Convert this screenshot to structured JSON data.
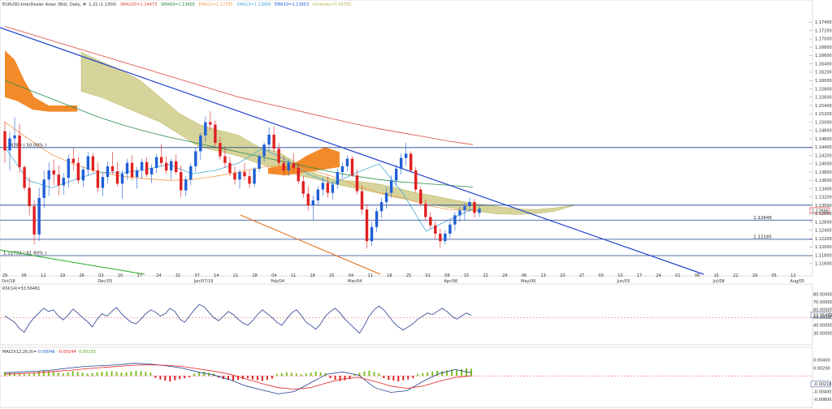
{
  "header": {
    "main": {
      "symbol_text": "EURUSD-InterDealer Asian (Bid), Daily, #: 1.22 (1.1350)",
      "sma200": "SMA200=1.14473",
      "sma89": "SMA89=1.13605",
      "ema21": "EMA21=1.12785",
      "sma13": "SMA13=1.12866",
      "ema10": "EMA10=1.13653",
      "ichimoku": "Ichimoku=1.00750"
    },
    "rsi": {
      "text": "RSI(14)=53.56461"
    },
    "macd": {
      "label": "MACD(12,26,9)=",
      "v1": "0.00049",
      "v2": "-0.00144",
      "v3": "0.00193"
    }
  },
  "colors": {
    "up": "#1f5fd6",
    "down": "#e02020",
    "cloud": "#cfcc88",
    "cloud_bear": "#f28a2a",
    "sma200": "#d94a3a",
    "sma89": "#2a8a4a",
    "ema21": "#f0a050",
    "sma13": "#4aa8d8",
    "trend": "#2244cc",
    "channel": "#e06a10",
    "fib": "#1f3f8f"
  },
  "chart_data": [
    {
      "panel": "price",
      "type": "candlestick",
      "x_ticks": [
        "29",
        "05",
        "12",
        "19",
        "26",
        "03",
        "10",
        "17",
        "24",
        "31",
        "07",
        "14",
        "21",
        "28",
        "04",
        "11",
        "18",
        "25",
        "04",
        "11",
        "18",
        "25",
        "01",
        "08",
        "15",
        "22",
        "29",
        "06",
        "13",
        "20",
        "27",
        "03",
        "10",
        "17",
        "24",
        "01",
        "08",
        "15",
        "22",
        "29",
        "05",
        "12"
      ],
      "period_labels": [
        "Oct/18",
        "Dec/03",
        "Jan/07/19",
        "Feb/04",
        "Mar/04",
        "Apr/08",
        "May/06",
        "Jun/03",
        "Jul/08",
        "Aug/05"
      ],
      "y_ticks": [
        "1.17400",
        "1.17200",
        "1.17000",
        "1.16800",
        "1.16600",
        "1.16400",
        "1.16200",
        "1.16000",
        "1.15800",
        "1.15600",
        "1.15400",
        "1.15200",
        "1.15000",
        "1.14800",
        "1.14600",
        "1.14400",
        "1.14200",
        "1.14000",
        "1.13800",
        "1.13600",
        "1.13400",
        "1.13200",
        "1.13000",
        "1.12800",
        "1.12600",
        "1.12400",
        "1.12200",
        "1.12000",
        "1.11800",
        "1.11600"
      ],
      "ylim": [
        1.115,
        1.177
      ],
      "last_price_label": "1.12866",
      "horizontal_levels": [
        {
          "label": "1.14389 ( 50.00% )",
          "value": 1.14389
        },
        {
          "label": "",
          "value": 1.13005
        },
        {
          "label": "1.12645",
          "value": 1.12645
        },
        {
          "label": "1.12185",
          "value": 1.12185
        },
        {
          "label": "1.11793 ( 61.80% )",
          "value": 1.11793
        }
      ],
      "candles_ohlc": [
        [
          1.1478,
          1.1502,
          1.1402,
          1.1432
        ],
        [
          1.1432,
          1.1476,
          1.1384,
          1.1461
        ],
        [
          1.1461,
          1.1512,
          1.1444,
          1.1468
        ],
        [
          1.1468,
          1.1496,
          1.1378,
          1.1392
        ],
        [
          1.1392,
          1.1396,
          1.1336,
          1.1342
        ],
        [
          1.1342,
          1.1368,
          1.1276,
          1.1298
        ],
        [
          1.1298,
          1.1312,
          1.1206,
          1.123
        ],
        [
          1.123,
          1.1342,
          1.1214,
          1.1318
        ],
        [
          1.1318,
          1.1384,
          1.1294,
          1.1362
        ],
        [
          1.1362,
          1.1404,
          1.1322,
          1.1384
        ],
        [
          1.1384,
          1.141,
          1.1348,
          1.1374
        ],
        [
          1.1374,
          1.1396,
          1.1324,
          1.1348
        ],
        [
          1.1348,
          1.1378,
          1.1326,
          1.1366
        ],
        [
          1.1366,
          1.1422,
          1.1342,
          1.1412
        ],
        [
          1.1412,
          1.1438,
          1.1384,
          1.1402
        ],
        [
          1.1402,
          1.1416,
          1.1352,
          1.136
        ],
        [
          1.136,
          1.1394,
          1.1344,
          1.1386
        ],
        [
          1.1386,
          1.1428,
          1.137,
          1.1418
        ],
        [
          1.1418,
          1.1426,
          1.1378,
          1.1384
        ],
        [
          1.1384,
          1.1404,
          1.1332,
          1.1342
        ],
        [
          1.1342,
          1.1378,
          1.1322,
          1.1368
        ],
        [
          1.1368,
          1.1406,
          1.1352,
          1.1394
        ],
        [
          1.1394,
          1.1428,
          1.1374,
          1.1382
        ],
        [
          1.1382,
          1.1404,
          1.1346,
          1.1352
        ],
        [
          1.1352,
          1.1384,
          1.1316,
          1.1376
        ],
        [
          1.1376,
          1.1412,
          1.1362,
          1.1402
        ],
        [
          1.1402,
          1.142,
          1.136,
          1.1368
        ],
        [
          1.1368,
          1.1392,
          1.134,
          1.1384
        ],
        [
          1.1384,
          1.1412,
          1.1364,
          1.1404
        ],
        [
          1.1404,
          1.1416,
          1.1368,
          1.1374
        ],
        [
          1.1374,
          1.1398,
          1.1354,
          1.139
        ],
        [
          1.139,
          1.1424,
          1.1378,
          1.1416
        ],
        [
          1.1416,
          1.1446,
          1.1394,
          1.1402
        ],
        [
          1.1402,
          1.1418,
          1.1376,
          1.1384
        ],
        [
          1.1384,
          1.1412,
          1.1362,
          1.1406
        ],
        [
          1.1406,
          1.1422,
          1.1374,
          1.138
        ],
        [
          1.138,
          1.1396,
          1.132,
          1.1336
        ],
        [
          1.1336,
          1.137,
          1.1322,
          1.1362
        ],
        [
          1.1362,
          1.1402,
          1.1348,
          1.1394
        ],
        [
          1.1394,
          1.1438,
          1.138,
          1.143
        ],
        [
          1.143,
          1.1474,
          1.141,
          1.1468
        ],
        [
          1.1468,
          1.1514,
          1.1452,
          1.15
        ],
        [
          1.15,
          1.1526,
          1.148,
          1.1494
        ],
        [
          1.1494,
          1.1504,
          1.1442,
          1.145
        ],
        [
          1.145,
          1.1464,
          1.141,
          1.1418
        ],
        [
          1.1418,
          1.1442,
          1.139,
          1.1402
        ],
        [
          1.1402,
          1.1416,
          1.137,
          1.1378
        ],
        [
          1.1378,
          1.1394,
          1.135,
          1.1362
        ],
        [
          1.1362,
          1.1386,
          1.134,
          1.138
        ],
        [
          1.138,
          1.1402,
          1.136,
          1.137
        ],
        [
          1.137,
          1.1384,
          1.1342,
          1.1352
        ],
        [
          1.1352,
          1.1392,
          1.1344,
          1.1388
        ],
        [
          1.1388,
          1.1424,
          1.138,
          1.1418
        ],
        [
          1.1418,
          1.1452,
          1.1404,
          1.1446
        ],
        [
          1.1446,
          1.1488,
          1.143,
          1.147
        ],
        [
          1.147,
          1.149,
          1.1428,
          1.1436
        ],
        [
          1.1436,
          1.145,
          1.1394,
          1.1402
        ],
        [
          1.1402,
          1.1418,
          1.1372,
          1.1384
        ],
        [
          1.1384,
          1.141,
          1.137,
          1.1402
        ],
        [
          1.1402,
          1.1426,
          1.138,
          1.139
        ],
        [
          1.139,
          1.1402,
          1.135,
          1.1358
        ],
        [
          1.1358,
          1.137,
          1.1318,
          1.1328
        ],
        [
          1.1328,
          1.1346,
          1.1288,
          1.13
        ],
        [
          1.13,
          1.1324,
          1.1266,
          1.1312
        ],
        [
          1.1312,
          1.1346,
          1.13,
          1.1338
        ],
        [
          1.1338,
          1.1368,
          1.1324,
          1.1354
        ],
        [
          1.1354,
          1.1372,
          1.1318,
          1.133
        ],
        [
          1.133,
          1.1358,
          1.1314,
          1.135
        ],
        [
          1.135,
          1.1388,
          1.134,
          1.138
        ],
        [
          1.138,
          1.1404,
          1.1366,
          1.1394
        ],
        [
          1.1394,
          1.142,
          1.1382,
          1.1412
        ],
        [
          1.1412,
          1.1418,
          1.1368,
          1.1372
        ],
        [
          1.1372,
          1.1386,
          1.1326,
          1.1334
        ],
        [
          1.1334,
          1.1348,
          1.1278,
          1.129
        ],
        [
          1.129,
          1.1302,
          1.1196,
          1.1214
        ],
        [
          1.1214,
          1.126,
          1.1202,
          1.1248
        ],
        [
          1.1248,
          1.1294,
          1.1236,
          1.1286
        ],
        [
          1.1286,
          1.1318,
          1.127,
          1.1308
        ],
        [
          1.1308,
          1.1344,
          1.1292,
          1.133
        ],
        [
          1.133,
          1.1372,
          1.1318,
          1.136
        ],
        [
          1.136,
          1.1398,
          1.1346,
          1.1388
        ],
        [
          1.1388,
          1.1424,
          1.1374,
          1.1414
        ],
        [
          1.1414,
          1.145,
          1.1396,
          1.1424
        ],
        [
          1.1424,
          1.143,
          1.1378,
          1.1384
        ],
        [
          1.1384,
          1.1392,
          1.133,
          1.1338
        ],
        [
          1.1338,
          1.1346,
          1.1298,
          1.1304
        ],
        [
          1.1304,
          1.1314,
          1.1264,
          1.1272
        ],
        [
          1.1272,
          1.1284,
          1.1242,
          1.1252
        ],
        [
          1.1252,
          1.1262,
          1.1218,
          1.1232
        ],
        [
          1.1232,
          1.1244,
          1.1198,
          1.1214
        ],
        [
          1.1214,
          1.124,
          1.1206,
          1.1232
        ],
        [
          1.1232,
          1.1262,
          1.1222,
          1.1254
        ],
        [
          1.1254,
          1.1284,
          1.124,
          1.1276
        ],
        [
          1.1276,
          1.1296,
          1.126,
          1.1288
        ],
        [
          1.1288,
          1.1306,
          1.1264,
          1.1298
        ],
        [
          1.1298,
          1.1318,
          1.1284,
          1.1308
        ],
        [
          1.1308,
          1.1316,
          1.127,
          1.1282
        ],
        [
          1.1282,
          1.13,
          1.1272,
          1.1292
        ]
      ],
      "sma200": [
        1.173,
        1.1713,
        1.1696,
        1.1679,
        1.1662,
        1.1645,
        1.1628,
        1.1611,
        1.1594,
        1.1577,
        1.156,
        1.1547,
        1.1534,
        1.1521,
        1.1508,
        1.1495,
        1.1484,
        1.1474,
        1.1464,
        1.1454,
        1.1446
      ],
      "sma89": [
        1.16,
        1.1578,
        1.1556,
        1.1534,
        1.1512,
        1.1494,
        1.1478,
        1.1464,
        1.1452,
        1.144,
        1.1428,
        1.1416,
        1.1404,
        1.1392,
        1.138,
        1.137,
        1.1362,
        1.1356,
        1.1352,
        1.1348,
        1.1344
      ],
      "ema21": [
        1.15,
        1.146,
        1.1422,
        1.1398,
        1.138,
        1.137,
        1.1364,
        1.136,
        1.1362,
        1.137,
        1.138,
        1.1392,
        1.1396,
        1.1386,
        1.137,
        1.1348,
        1.133,
        1.1318,
        1.13,
        1.129,
        1.1288
      ],
      "sma13": [
        1.144,
        1.136,
        1.1342,
        1.1362,
        1.138,
        1.1378,
        1.1386,
        1.1398,
        1.1376,
        1.1384,
        1.1402,
        1.1436,
        1.141,
        1.1374,
        1.1352,
        1.1378,
        1.14,
        1.133,
        1.1238,
        1.1266,
        1.1292
      ],
      "cloud_a": [
        1.1668,
        1.1646,
        1.1625,
        1.16,
        1.156,
        1.152,
        1.1494,
        1.148,
        1.1468,
        1.144,
        1.1428,
        1.14,
        1.1374,
        1.136,
        1.1358,
        1.1352,
        1.1342,
        1.133,
        1.1322,
        1.1312,
        1.1304,
        1.1298,
        1.1292,
        1.129,
        1.1294,
        1.13
      ],
      "cloud_b": [
        1.1574,
        1.156,
        1.154,
        1.152,
        1.15,
        1.147,
        1.144,
        1.143,
        1.1418,
        1.14,
        1.1388,
        1.1372,
        1.1362,
        1.135,
        1.134,
        1.133,
        1.1318,
        1.131,
        1.13,
        1.1292,
        1.1286,
        1.128,
        1.1278,
        1.128,
        1.1286,
        1.13
      ]
    },
    {
      "panel": "rsi",
      "type": "line",
      "y_ticks": [
        "80.00000",
        "70.00000",
        "60.00000",
        "53.56461",
        "50.00000",
        "40.00000",
        "30.00000"
      ],
      "ylim": [
        20,
        85
      ],
      "levels": [
        50
      ],
      "values": [
        52,
        48,
        44,
        36,
        31,
        42,
        50,
        56,
        62,
        58,
        60,
        52,
        47,
        53,
        61,
        56,
        50,
        45,
        38,
        48,
        55,
        52,
        58,
        63,
        55,
        49,
        44,
        42,
        48,
        55,
        60,
        57,
        52,
        55,
        62,
        58,
        48,
        44,
        52,
        60,
        67,
        64,
        57,
        50,
        46,
        52,
        58,
        54,
        48,
        43,
        40,
        46,
        54,
        60,
        55,
        50,
        44,
        40,
        48,
        56,
        60,
        53,
        44,
        40,
        35,
        42,
        52,
        58,
        62,
        56,
        48,
        42,
        36,
        30,
        40,
        52,
        60,
        65,
        60,
        52,
        44,
        38,
        34,
        38,
        42,
        48,
        52,
        56,
        54,
        58,
        62,
        58,
        52,
        48,
        52,
        56,
        53
      ]
    },
    {
      "panel": "macd",
      "type": "histogram+line",
      "y_ticks": [
        "0.00400",
        "0.00200",
        "-0.00210",
        "-0.00400",
        "-0.00600"
      ],
      "ylim": [
        -0.0072,
        0.0052
      ],
      "hist": [
        0.001,
        0.0009,
        0.0007,
        0.0005,
        0.0004,
        0.0005,
        0.0008,
        0.0011,
        0.0013,
        0.0012,
        0.001,
        0.0008,
        0.0006,
        0.0009,
        0.0012,
        0.001,
        0.0008,
        0.0006,
        0.0007,
        0.0009,
        0.001,
        0.0011,
        0.0012,
        0.001,
        0.0008,
        0.0009,
        0.0011,
        0.0013,
        0.0012,
        0.001,
        0.0008,
        -0.0005,
        -0.0009,
        -0.0012,
        -0.0014,
        -0.0011,
        -0.0008,
        -0.0006,
        -0.0004,
        0.0006,
        0.0009,
        0.0011,
        0.0008,
        0.0006,
        -0.0004,
        -0.0008,
        -0.001,
        -0.0012,
        -0.001,
        -0.0008,
        -0.0006,
        -0.0009,
        -0.0011,
        -0.0013,
        -0.001,
        -0.0007,
        0.0005,
        0.0007,
        0.0009,
        0.0008,
        0.0006,
        0.0004,
        0.0006,
        0.0008,
        0.0011,
        0.0009,
        0.0007,
        -0.0006,
        -0.001,
        -0.0013,
        -0.0011,
        -0.0008,
        0.0004,
        0.0008,
        0.0011,
        0.0013,
        0.001,
        0.0007,
        -0.0006,
        -0.001,
        -0.0012,
        -0.0014,
        -0.0011,
        -0.0009,
        -0.0006,
        0.0005,
        0.0007,
        0.0009,
        0.0011,
        0.0013,
        0.0012,
        0.0014,
        0.0016,
        0.0015,
        0.0017,
        0.0019,
        0.0018
      ],
      "macd": [
        0.0008,
        0.001,
        0.0012,
        0.0015,
        0.002,
        0.0024,
        0.0026,
        0.0028,
        0.0032,
        0.003,
        0.0026,
        0.002,
        0.001,
        0.0002,
        -0.001,
        -0.0026,
        -0.0036,
        -0.0046,
        -0.004,
        -0.0018,
        0.0004,
        0.001,
        0.0002,
        -0.003,
        -0.0042,
        -0.0038,
        -0.0014,
        0.0006,
        0.0016,
        0.0008
      ],
      "signal": [
        0.0004,
        0.0006,
        0.0008,
        0.0011,
        0.0014,
        0.0018,
        0.0021,
        0.0024,
        0.0027,
        0.0028,
        0.0027,
        0.0024,
        0.0018,
        0.0012,
        0.0004,
        -0.0008,
        -0.002,
        -0.003,
        -0.0034,
        -0.003,
        -0.0018,
        -0.0008,
        -0.0004,
        -0.0014,
        -0.0026,
        -0.0032,
        -0.0026,
        -0.0014,
        -0.0004,
        0.0
      ]
    }
  ]
}
